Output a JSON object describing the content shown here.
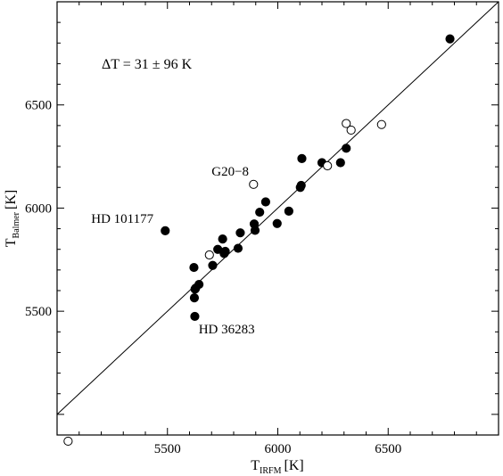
{
  "chart_data": {
    "type": "scatter",
    "title": "",
    "xlabel": "T",
    "xlabel_subscript": "IRFM",
    "xlabel_unit": "[K]",
    "ylabel": "T",
    "ylabel_subscript": "Balmer",
    "ylabel_unit": "[K]",
    "xlim": [
      5000,
      7000
    ],
    "ylim": [
      4900,
      7000
    ],
    "x_ticks": [
      5500,
      6000,
      6500
    ],
    "y_ticks": [
      5500,
      6000,
      6500
    ],
    "grid": false,
    "legend": "none",
    "reference_line": "y = x",
    "summary_text": "ΔT  =  31 ±  96 K",
    "series": [
      {
        "marker": "filled-circle",
        "x": [
          5490,
          5620,
          5622,
          5624,
          5625,
          5628,
          5643,
          5705,
          5728,
          5750,
          5757,
          5762,
          5820,
          5830,
          5893,
          5897,
          5918,
          5945,
          5997,
          6050,
          6102,
          6106,
          6109,
          6200,
          6284,
          6310,
          6780
        ],
        "y": [
          5890,
          5712,
          5565,
          5475,
          5607,
          5612,
          5630,
          5722,
          5800,
          5850,
          5780,
          5790,
          5805,
          5880,
          5923,
          5892,
          5980,
          6030,
          5925,
          5985,
          6100,
          6110,
          6240,
          6220,
          6220,
          6290,
          6820
        ]
      },
      {
        "marker": "open-circle",
        "x": [
          5050,
          5690,
          5890,
          6225,
          6310,
          6332,
          6470
        ],
        "y": [
          4870,
          5773,
          6115,
          6205,
          6410,
          6378,
          6405
        ]
      }
    ],
    "annotations": [
      {
        "text": "HD 101177",
        "x": 5490,
        "y": 5890
      },
      {
        "text": "G20−8",
        "x": 5890,
        "y": 6115
      },
      {
        "text": "HD 36283",
        "x": 5625,
        "y": 5475
      }
    ]
  }
}
